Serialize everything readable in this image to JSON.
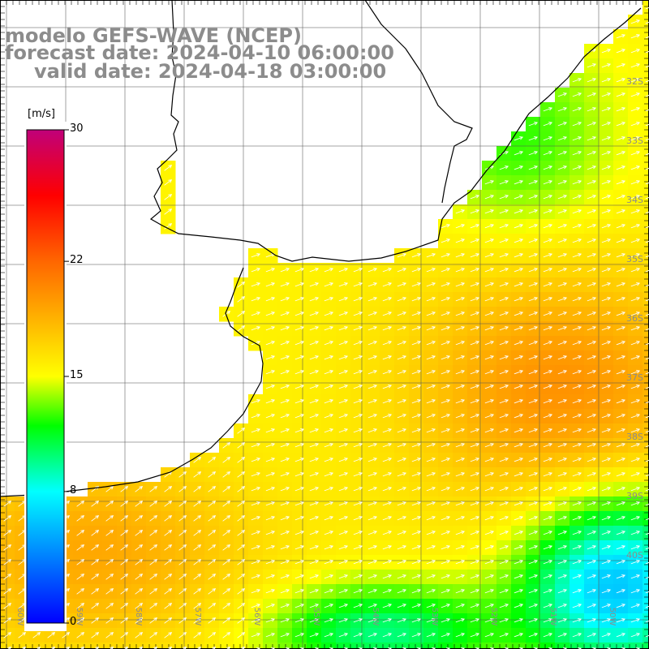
{
  "header": {
    "model": "modelo GEFS-WAVE (NCEP)",
    "forecast": "forecast date: 2024-04-10 06:00:00",
    "valid": "valid date: 2024-04-18 03:00:00"
  },
  "colorbar": {
    "unit": "[m/s]",
    "min": 0,
    "max": 30,
    "ticks": [
      {
        "value": 30,
        "label": "30"
      },
      {
        "value": 22,
        "label": "22"
      },
      {
        "value": 15,
        "label": "15"
      },
      {
        "value": 8,
        "label": "8"
      },
      {
        "value": 0,
        "label": "0"
      }
    ],
    "color_stops": [
      {
        "value": 0,
        "color": "#0000ff"
      },
      {
        "value": 8,
        "color": "#00ffff"
      },
      {
        "value": 12,
        "color": "#00ff00"
      },
      {
        "value": 15,
        "color": "#ffff00"
      },
      {
        "value": 22,
        "color": "#ff6600"
      },
      {
        "value": 26,
        "color": "#ff0000"
      },
      {
        "value": 30,
        "color": "#c0007a"
      }
    ]
  },
  "map": {
    "ocean_color": "#ffffff",
    "coast_color": "#000000",
    "grid_color": "#555555",
    "lat_labels": [
      "32S",
      "33S",
      "34S",
      "35S",
      "36S",
      "37S",
      "38S",
      "39S",
      "40S"
    ],
    "lon_labels": [
      "60W",
      "59W",
      "58W",
      "57W",
      "56W",
      "55W",
      "54W",
      "53W",
      "52W",
      "51W",
      "50W"
    ]
  }
}
